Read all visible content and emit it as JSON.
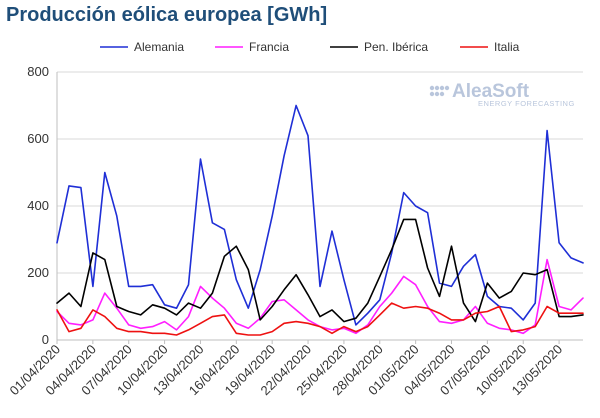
{
  "title": "Producción eólica europea [GWh]",
  "watermark": {
    "brand": "AleaSoft",
    "tagline": "ENERGY FORECASTING",
    "color": "#b9c6dc"
  },
  "chart_data": {
    "type": "line",
    "title": "Producción eólica europea [GWh]",
    "xlabel": "",
    "ylabel": "",
    "ylim": [
      0,
      800
    ],
    "yticks": [
      0,
      200,
      400,
      600,
      800
    ],
    "grid": "horizontal",
    "legend": "top",
    "x_start": "01/04/2020",
    "x_end": "15/05/2020",
    "x_ticks": [
      "01/04/2020",
      "04/04/2020",
      "07/04/2020",
      "10/04/2020",
      "13/04/2020",
      "16/04/2020",
      "19/04/2020",
      "22/04/2020",
      "25/04/2020",
      "28/04/2020",
      "01/05/2020",
      "04/05/2020",
      "07/05/2020",
      "10/05/2020",
      "13/05/2020"
    ],
    "x": [
      "01/04",
      "02/04",
      "03/04",
      "04/04",
      "05/04",
      "06/04",
      "07/04",
      "08/04",
      "09/04",
      "10/04",
      "11/04",
      "12/04",
      "13/04",
      "14/04",
      "15/04",
      "16/04",
      "17/04",
      "18/04",
      "19/04",
      "20/04",
      "21/04",
      "22/04",
      "23/04",
      "24/04",
      "25/04",
      "26/04",
      "27/04",
      "28/04",
      "29/04",
      "30/04",
      "01/05",
      "02/05",
      "03/05",
      "04/05",
      "05/05",
      "06/05",
      "07/05",
      "08/05",
      "09/05",
      "10/05",
      "11/05",
      "12/05",
      "13/05",
      "14/05",
      "15/05"
    ],
    "series": [
      {
        "name": "Alemania",
        "color": "#1f2fd6",
        "values": [
          290,
          460,
          455,
          160,
          500,
          370,
          160,
          160,
          165,
          105,
          95,
          165,
          540,
          350,
          330,
          180,
          95,
          210,
          370,
          550,
          700,
          610,
          160,
          325,
          180,
          45,
          80,
          120,
          260,
          440,
          400,
          380,
          170,
          160,
          220,
          255,
          130,
          100,
          95,
          60,
          110,
          625,
          290,
          245,
          230
        ]
      },
      {
        "name": "Francia",
        "color": "#ff1fff",
        "values": [
          85,
          50,
          45,
          60,
          140,
          95,
          45,
          35,
          40,
          55,
          30,
          70,
          160,
          125,
          95,
          50,
          35,
          65,
          115,
          120,
          90,
          60,
          40,
          30,
          35,
          20,
          45,
          100,
          140,
          190,
          165,
          100,
          55,
          50,
          60,
          100,
          50,
          35,
          30,
          20,
          45,
          240,
          100,
          90,
          125
        ]
      },
      {
        "name": "Pen. Ibérica",
        "color": "#000000",
        "values": [
          110,
          140,
          100,
          260,
          240,
          100,
          85,
          75,
          105,
          95,
          75,
          110,
          95,
          140,
          250,
          280,
          210,
          60,
          100,
          150,
          195,
          135,
          70,
          90,
          55,
          65,
          110,
          190,
          270,
          360,
          360,
          215,
          130,
          280,
          110,
          55,
          170,
          125,
          145,
          200,
          195,
          210,
          70,
          70,
          75
        ]
      },
      {
        "name": "Italia",
        "color": "#ee1111",
        "values": [
          90,
          25,
          35,
          90,
          70,
          35,
          25,
          25,
          20,
          20,
          15,
          30,
          50,
          70,
          75,
          20,
          15,
          15,
          25,
          50,
          55,
          50,
          40,
          20,
          40,
          25,
          40,
          75,
          110,
          95,
          100,
          95,
          80,
          60,
          60,
          80,
          85,
          100,
          25,
          30,
          40,
          100,
          80,
          80,
          80
        ]
      }
    ]
  }
}
